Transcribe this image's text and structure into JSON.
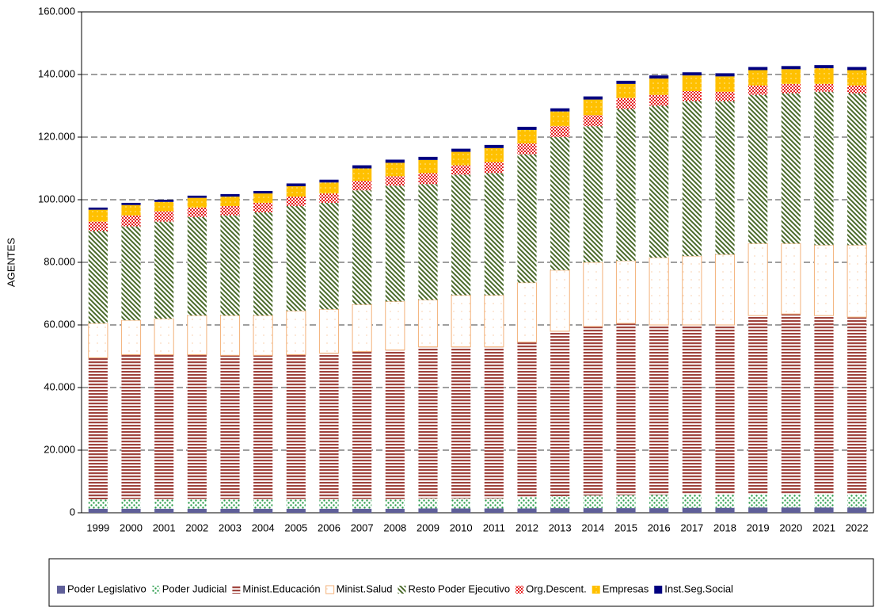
{
  "chart_data": {
    "type": "stacked-bar",
    "y_label": "AGENTES",
    "categories": [
      "1999",
      "2000",
      "2001",
      "2002",
      "2003",
      "2004",
      "2005",
      "2006",
      "2007",
      "2008",
      "2009",
      "2010",
      "2011",
      "2012",
      "2013",
      "2014",
      "2015",
      "2016",
      "2017",
      "2018",
      "2019",
      "2020",
      "2021",
      "2022"
    ],
    "ylim": [
      0,
      160000
    ],
    "yticks": [
      0,
      {
        "value": 20000,
        "label": "20.000"
      },
      {
        "value": 40000,
        "label": "40.000"
      },
      {
        "value": 60000,
        "label": "60.000"
      },
      {
        "value": 80000,
        "label": "80.000"
      },
      {
        "value": 100000,
        "label": "100.000"
      },
      {
        "value": 120000,
        "label": "120.000"
      },
      {
        "value": 140000,
        "label": "140.000"
      },
      {
        "value": 160000,
        "label": "160.000"
      }
    ],
    "grid": true,
    "legend": "bottom",
    "series": [
      {
        "name": "Poder Legislativo",
        "color": "#5f5f99",
        "values": [
          1300,
          1300,
          1300,
          1300,
          1300,
          1300,
          1300,
          1300,
          1300,
          1300,
          1400,
          1400,
          1400,
          1400,
          1500,
          1500,
          1500,
          1500,
          1600,
          1600,
          1700,
          1700,
          1700,
          1700
        ]
      },
      {
        "name": "Poder Judicial",
        "color": "#2e9e4e",
        "values": [
          3000,
          3100,
          3100,
          3100,
          3100,
          3100,
          3100,
          3100,
          3100,
          3100,
          3200,
          3200,
          3200,
          3600,
          3800,
          4000,
          4100,
          4200,
          4200,
          4200,
          4300,
          4300,
          4300,
          4300
        ]
      },
      {
        "name": "Minist.Educación",
        "color": "#a0453f",
        "values": [
          45200,
          46100,
          46100,
          46100,
          45900,
          45900,
          46100,
          46600,
          47100,
          47600,
          48400,
          48400,
          48400,
          49500,
          52700,
          54000,
          54900,
          54300,
          54200,
          54200,
          57000,
          57500,
          57000,
          56500
        ]
      },
      {
        "name": "Minist.Salud",
        "color": "#f4b27a",
        "values": [
          11000,
          11000,
          11500,
          12500,
          12700,
          12700,
          14000,
          14000,
          15000,
          15500,
          15000,
          16500,
          16500,
          19000,
          19500,
          20500,
          20000,
          21500,
          22000,
          22500,
          23000,
          22500,
          22500,
          23000
        ]
      },
      {
        "name": "Resto Poder Ejecutivo",
        "color": "#4a6a2a",
        "values": [
          29500,
          30000,
          31000,
          31500,
          32000,
          33000,
          33500,
          34000,
          36500,
          37000,
          37000,
          38500,
          39000,
          41000,
          42500,
          43500,
          48500,
          48500,
          49500,
          49000,
          47500,
          48000,
          49000,
          48500
        ]
      },
      {
        "name": "Org.Descent.",
        "color": "#e52020",
        "values": [
          3000,
          3500,
          3300,
          3000,
          3000,
          3000,
          3000,
          3000,
          3000,
          3000,
          3500,
          3000,
          3500,
          3500,
          3500,
          3500,
          3500,
          3500,
          3200,
          3000,
          3000,
          3000,
          2500,
          2500
        ]
      },
      {
        "name": "Empresas",
        "color": "#ffc000",
        "values": [
          3800,
          3300,
          3000,
          3100,
          3000,
          3000,
          3300,
          3500,
          4000,
          4300,
          4200,
          4300,
          4500,
          4300,
          4700,
          5000,
          4500,
          5200,
          5000,
          4900,
          4900,
          4700,
          5000,
          4900
        ]
      },
      {
        "name": "Inst.Seg.Social",
        "color": "#000080",
        "values": [
          700,
          700,
          700,
          700,
          800,
          800,
          900,
          900,
          1000,
          1000,
          1000,
          1000,
          1000,
          1000,
          1000,
          1000,
          1000,
          1000,
          1000,
          1000,
          1000,
          1000,
          1000,
          1000
        ]
      }
    ]
  }
}
